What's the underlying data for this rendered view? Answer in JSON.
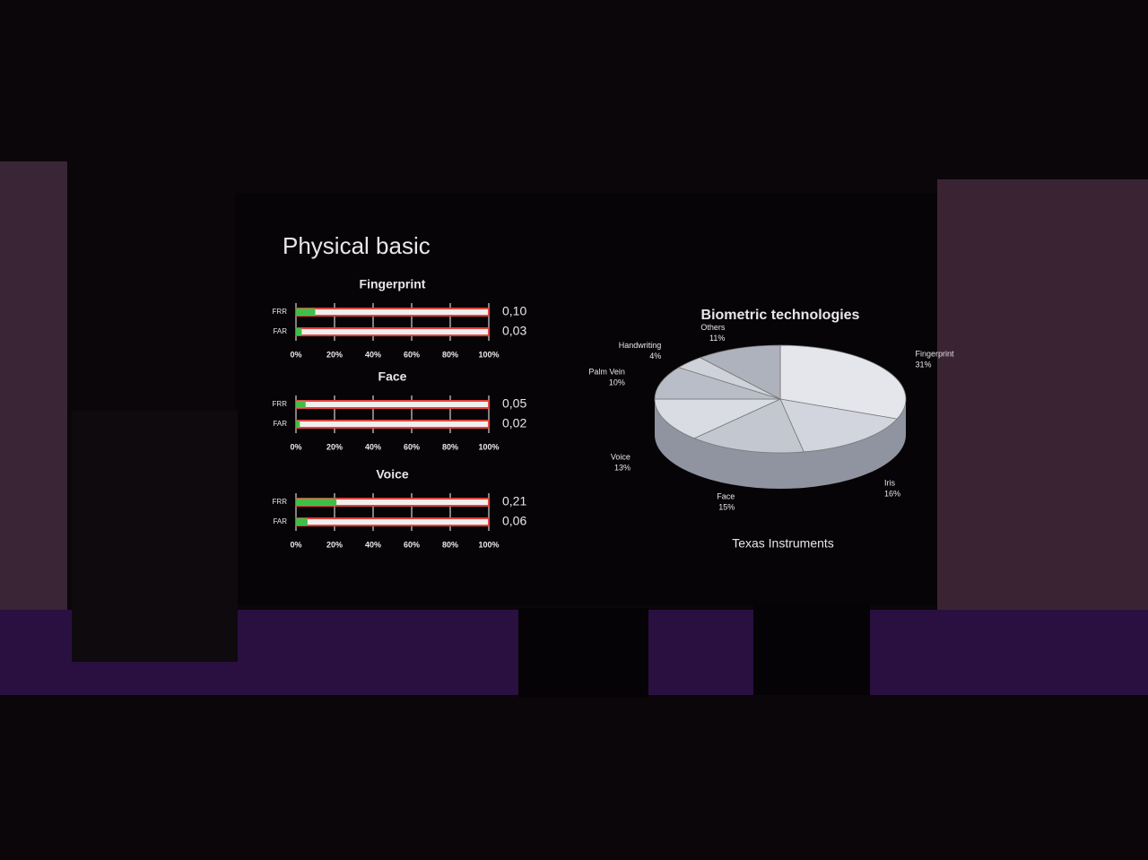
{
  "slide": {
    "title": "Physical basic"
  },
  "chart_data": [
    {
      "type": "bar",
      "title": "Fingerprint",
      "categories": [
        "FRR",
        "FAR"
      ],
      "values": [
        0.1,
        0.03
      ],
      "value_labels": [
        "0,10",
        "0,03"
      ],
      "color": "#3fbf4a",
      "xlim": [
        0,
        1
      ],
      "xticks": [
        {
          "value": 0,
          "label": "0%"
        },
        {
          "value": 0.2,
          "label": "20%"
        },
        {
          "value": 0.4,
          "label": "40%"
        },
        {
          "value": 0.6,
          "label": "60%"
        },
        {
          "value": 0.8,
          "label": "80%"
        },
        {
          "value": 1,
          "label": "100%"
        }
      ]
    },
    {
      "type": "bar",
      "title": "Face",
      "categories": [
        "FRR",
        "FAR"
      ],
      "values": [
        0.05,
        0.02
      ],
      "value_labels": [
        "0,05",
        "0,02"
      ],
      "color": "#3fbf4a",
      "xlim": [
        0,
        1
      ],
      "xticks": [
        {
          "value": 0,
          "label": "0%"
        },
        {
          "value": 0.2,
          "label": "20%"
        },
        {
          "value": 0.4,
          "label": "40%"
        },
        {
          "value": 0.6,
          "label": "60%"
        },
        {
          "value": 0.8,
          "label": "80%"
        },
        {
          "value": 1,
          "label": "100%"
        }
      ]
    },
    {
      "type": "bar",
      "title": "Voice",
      "categories": [
        "FRR",
        "FAR"
      ],
      "values": [
        0.21,
        0.06
      ],
      "value_labels": [
        "0,21",
        "0,06"
      ],
      "color": "#3fbf4a",
      "xlim": [
        0,
        1
      ],
      "xticks": [
        {
          "value": 0,
          "label": "0%"
        },
        {
          "value": 0.2,
          "label": "20%"
        },
        {
          "value": 0.4,
          "label": "40%"
        },
        {
          "value": 0.6,
          "label": "60%"
        },
        {
          "value": 0.8,
          "label": "80%"
        },
        {
          "value": 1,
          "label": "100%"
        }
      ]
    },
    {
      "type": "pie",
      "title": "Biometric technologies",
      "source": "Texas Instruments",
      "categories": [
        "Fingerprint",
        "Iris",
        "Face",
        "Voice",
        "Palm Vein",
        "Handwriting",
        "Others"
      ],
      "values": [
        31,
        16,
        15,
        13,
        10,
        4,
        11
      ],
      "value_labels": [
        "31%",
        "16%",
        "15%",
        "13%",
        "10%",
        "4%",
        "11%"
      ],
      "colors": [
        "#e4e6ec",
        "#d2d5dd",
        "#c3c7d0",
        "#d9dce3",
        "#b9bdc7",
        "#cfd2da",
        "#aeb2bc"
      ]
    }
  ]
}
